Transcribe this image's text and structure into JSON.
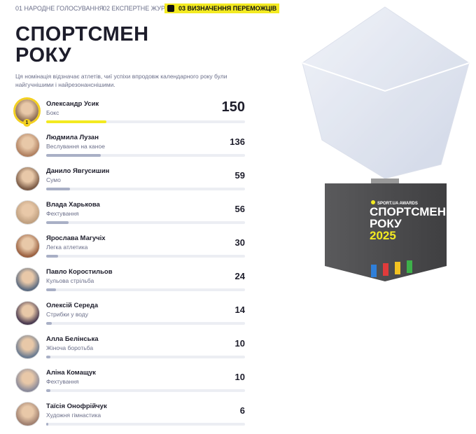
{
  "tabs": [
    "01 НАРОДНЕ ГОЛОСУВАННЯ",
    "02 ЕКСПЕРТНЕ ЖУРІ",
    "03 ВИЗНАЧЕННЯ ПЕРЕМОЖЦІВ"
  ],
  "title": [
    "СПОРТСМЕН",
    "РОКУ"
  ],
  "description": "Ця номінація відзначає атлетів, чиї успіхи впродовж календарного року були найгучнішими і найрезонанснішими.",
  "leaders": [
    {
      "rank": 1,
      "name": "Олександр Усик",
      "sport": "Бокс",
      "score": 150
    },
    {
      "name": "Людмила Лузан",
      "sport": "Веслування на каное",
      "score": 136
    },
    {
      "name": "Данило Явгусишин",
      "sport": "Сумо",
      "score": 59
    },
    {
      "name": "Влада Харькова",
      "sport": "Фехтування",
      "score": 56
    },
    {
      "name": "Ярослава Магучіх",
      "sport": "Легка атлетика",
      "score": 30
    },
    {
      "name": "Павло Коростильов",
      "sport": "Кульова стрільба",
      "score": 24
    },
    {
      "name": "Олексій Середа",
      "sport": "Стрибки у воду",
      "score": 14
    },
    {
      "name": "Алла Белінська",
      "sport": "Жіноча боротьба",
      "score": 10
    },
    {
      "name": "Аліна Комащук",
      "sport": "Фехтування",
      "score": 10
    },
    {
      "name": "Таїсія Онофрійчук",
      "sport": "Художня гімнастика",
      "score": 6
    }
  ],
  "trophy": {
    "brand": "SPORT.UA AWARDS",
    "line1": "СПОРТСМЕН",
    "line2": "РОКУ",
    "year": "2025"
  }
}
